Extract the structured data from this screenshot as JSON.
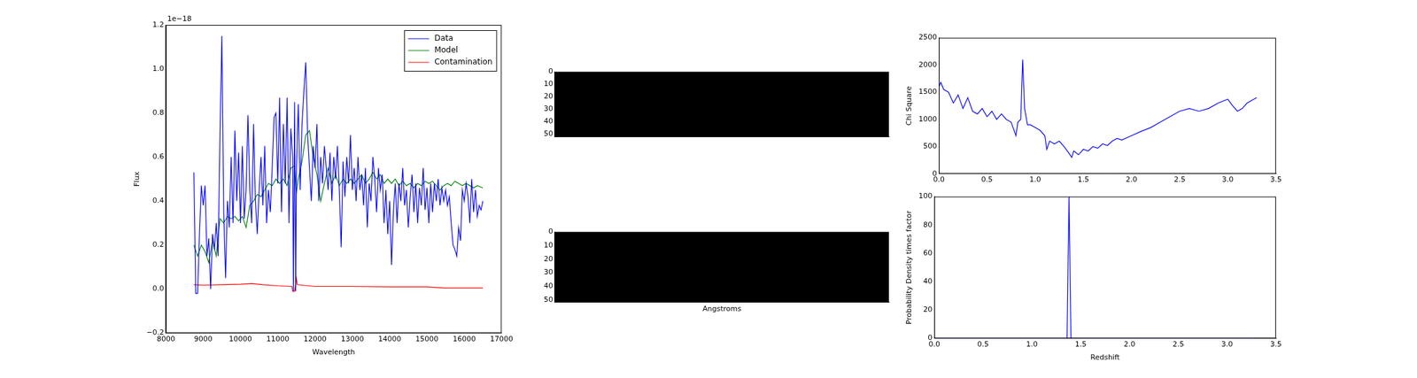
{
  "chart_data": [
    {
      "type": "line",
      "xlabel": "Wavelength",
      "ylabel": "Flux",
      "xlim": [
        8000,
        17000
      ],
      "xticks": [
        8000,
        9000,
        10000,
        11000,
        12000,
        13000,
        14000,
        15000,
        16000,
        17000
      ],
      "ylim": [
        -0.2,
        1.2
      ],
      "yticks": [
        {
          "value": -0.2,
          "label": "−0.2"
        },
        {
          "value": 0,
          "label": "0.0"
        },
        0.2,
        0.4,
        0.6,
        0.8,
        {
          "value": 1,
          "label": "1.0"
        },
        1.2
      ],
      "annotations": [
        "1e−18"
      ],
      "legend": "upper right",
      "grid": false,
      "series": [
        {
          "name": "Data",
          "color": "#0000ff",
          "x": [
            8750,
            8800,
            8850,
            8900,
            8950,
            9000,
            9050,
            9100,
            9150,
            9200,
            9250,
            9300,
            9350,
            9400,
            9450,
            9500,
            9550,
            9600,
            9650,
            9700,
            9750,
            9800,
            9850,
            9900,
            9950,
            10000,
            10050,
            10100,
            10150,
            10200,
            10250,
            10300,
            10350,
            10400,
            10450,
            10500,
            10550,
            10600,
            10650,
            10700,
            10750,
            10800,
            10850,
            10900,
            10950,
            11000,
            11050,
            11100,
            11150,
            11200,
            11250,
            11300,
            11350,
            11400,
            11420,
            11450,
            11480,
            11500,
            11550,
            11600,
            11650,
            11700,
            11750,
            11800,
            11850,
            11900,
            11950,
            12000,
            12050,
            12100,
            12150,
            12200,
            12250,
            12300,
            12350,
            12400,
            12450,
            12500,
            12550,
            12600,
            12650,
            12700,
            12750,
            12800,
            12850,
            12900,
            12950,
            13000,
            13050,
            13100,
            13150,
            13200,
            13250,
            13300,
            13350,
            13400,
            13450,
            13500,
            13550,
            13600,
            13650,
            13700,
            13750,
            13800,
            13850,
            13900,
            13950,
            14000,
            14050,
            14100,
            14150,
            14200,
            14250,
            14300,
            14350,
            14400,
            14450,
            14500,
            14550,
            14600,
            14650,
            14700,
            14750,
            14800,
            14850,
            14900,
            14950,
            15000,
            15050,
            15100,
            15150,
            15200,
            15250,
            15300,
            15350,
            15400,
            15450,
            15500,
            15550,
            15600,
            15650,
            15700,
            15750,
            15800,
            15850,
            15900,
            15950,
            16000,
            16050,
            16100,
            16150,
            16200,
            16250,
            16300,
            16350,
            16400,
            16450,
            16500
          ],
          "values": [
            0.53,
            -0.02,
            -0.02,
            0.25,
            0.47,
            0.38,
            0.47,
            0.15,
            0.23,
            0.0,
            0.25,
            0.18,
            0.3,
            0.15,
            0.7,
            1.15,
            0.35,
            0.05,
            0.4,
            0.28,
            0.6,
            0.3,
            0.72,
            0.4,
            0.62,
            0.3,
            0.65,
            0.32,
            0.45,
            0.79,
            0.45,
            0.3,
            0.75,
            0.4,
            0.25,
            0.45,
            0.6,
            0.38,
            0.65,
            0.3,
            0.45,
            0.35,
            0.55,
            0.78,
            0.8,
            0.48,
            0.87,
            0.35,
            0.75,
            0.48,
            0.87,
            0.3,
            0.73,
            0.6,
            -0.01,
            0.85,
            -0.01,
            0.55,
            0.84,
            0.45,
            0.75,
            0.9,
            1.03,
            0.7,
            0.55,
            0.4,
            0.65,
            0.55,
            0.75,
            0.4,
            0.6,
            0.48,
            0.65,
            0.55,
            0.45,
            0.62,
            0.4,
            0.6,
            0.5,
            0.65,
            0.45,
            0.19,
            0.58,
            0.42,
            0.6,
            0.48,
            0.7,
            0.45,
            0.55,
            0.4,
            0.6,
            0.45,
            0.52,
            0.38,
            0.55,
            0.28,
            0.48,
            0.4,
            0.6,
            0.5,
            0.35,
            0.55,
            0.45,
            0.52,
            0.3,
            0.45,
            0.25,
            0.4,
            0.11,
            0.35,
            0.48,
            0.3,
            0.48,
            0.4,
            0.55,
            0.38,
            0.45,
            0.28,
            0.42,
            0.52,
            0.35,
            0.48,
            0.3,
            0.46,
            0.38,
            0.55,
            0.36,
            0.46,
            0.3,
            0.48,
            0.35,
            0.48,
            0.4,
            0.5,
            0.38,
            0.46,
            0.4,
            0.45,
            0.38,
            0.42,
            0.3,
            0.2,
            0.18,
            0.15,
            0.28,
            0.22,
            0.45,
            0.4,
            0.48,
            0.42,
            0.3,
            0.5,
            0.35,
            0.45,
            0.33,
            0.38,
            0.36,
            0.4
          ]
        },
        {
          "name": "Model",
          "color": "#008000",
          "x": [
            8750,
            8850,
            8950,
            9050,
            9150,
            9250,
            9350,
            9450,
            9550,
            9650,
            9750,
            9850,
            9950,
            10050,
            10150,
            10250,
            10350,
            10450,
            10550,
            10650,
            10750,
            10850,
            10950,
            11050,
            11150,
            11250,
            11350,
            11450,
            11500,
            11550,
            11650,
            11750,
            11850,
            11950,
            12050,
            12150,
            12250,
            12350,
            12450,
            12550,
            12650,
            12750,
            12850,
            12950,
            13050,
            13150,
            13250,
            13350,
            13450,
            13550,
            13650,
            13750,
            13850,
            13950,
            14050,
            14150,
            14250,
            14350,
            14450,
            14550,
            14650,
            14750,
            14850,
            14950,
            15050,
            15150,
            15250,
            15350,
            15450,
            15550,
            15650,
            15750,
            15850,
            15950,
            16050,
            16150,
            16250,
            16350,
            16500
          ],
          "values": [
            0.2,
            0.15,
            0.2,
            0.17,
            0.12,
            0.22,
            0.15,
            0.32,
            0.3,
            0.33,
            0.32,
            0.33,
            0.31,
            0.33,
            0.28,
            0.38,
            0.4,
            0.43,
            0.42,
            0.45,
            0.48,
            0.47,
            0.5,
            0.48,
            0.5,
            0.47,
            0.55,
            0.56,
            0.44,
            0.5,
            0.58,
            0.7,
            0.72,
            0.6,
            0.52,
            0.4,
            0.48,
            0.55,
            0.48,
            0.52,
            0.47,
            0.5,
            0.48,
            0.5,
            0.48,
            0.5,
            0.52,
            0.48,
            0.5,
            0.53,
            0.5,
            0.52,
            0.48,
            0.5,
            0.48,
            0.5,
            0.47,
            0.49,
            0.47,
            0.48,
            0.46,
            0.48,
            0.47,
            0.49,
            0.48,
            0.49,
            0.47,
            0.45,
            0.47,
            0.48,
            0.47,
            0.49,
            0.48,
            0.47,
            0.48,
            0.47,
            0.46,
            0.47,
            0.46
          ]
        },
        {
          "name": "Contamination",
          "color": "#ff0000",
          "x": [
            8750,
            9000,
            9500,
            10000,
            10300,
            10600,
            11000,
            11380,
            11400,
            11450,
            11500,
            11520,
            12000,
            13000,
            14000,
            15000,
            15500,
            16500
          ],
          "values": [
            0.02,
            0.018,
            0.02,
            0.022,
            0.025,
            0.02,
            0.015,
            0.012,
            -0.01,
            -0.01,
            0.05,
            0.02,
            0.012,
            0.012,
            0.01,
            0.01,
            0.005,
            0.005
          ]
        }
      ]
    },
    {
      "type": "image",
      "color": "#000000",
      "ylim": [
        52,
        0
      ],
      "yticks": [
        0,
        10,
        20,
        30,
        40,
        50
      ],
      "tick_labels": "y"
    },
    {
      "type": "image",
      "color": "#000000",
      "ylim": [
        52,
        0
      ],
      "yticks": [
        0,
        10,
        20,
        30,
        40,
        50
      ],
      "tick_labels": "y",
      "xlabel": "Angstroms"
    },
    {
      "type": "line",
      "ylabel": "Chi Square",
      "grid": false,
      "xlim": [
        0,
        3.5
      ],
      "xticks": [
        {
          "value": 0,
          "label": "0.0"
        },
        0.5,
        {
          "value": 1,
          "label": "1.0"
        },
        1.5,
        {
          "value": 2,
          "label": "2.0"
        },
        2.5,
        {
          "value": 3,
          "label": "3.0"
        },
        3.5
      ],
      "ylim": [
        0,
        2500
      ],
      "yticks": [
        0,
        500,
        1000,
        1500,
        2000,
        2500
      ],
      "series": [
        {
          "color": "#0000ff",
          "x": [
            0.0,
            0.02,
            0.05,
            0.1,
            0.15,
            0.2,
            0.25,
            0.3,
            0.35,
            0.4,
            0.45,
            0.5,
            0.55,
            0.6,
            0.65,
            0.7,
            0.75,
            0.8,
            0.82,
            0.85,
            0.87,
            0.89,
            0.92,
            0.95,
            1.0,
            1.05,
            1.1,
            1.12,
            1.15,
            1.2,
            1.25,
            1.3,
            1.35,
            1.38,
            1.4,
            1.45,
            1.5,
            1.55,
            1.6,
            1.65,
            1.7,
            1.75,
            1.8,
            1.85,
            1.9,
            2.0,
            2.1,
            2.2,
            2.3,
            2.4,
            2.5,
            2.6,
            2.7,
            2.8,
            2.9,
            3.0,
            3.05,
            3.1,
            3.15,
            3.2,
            3.3
          ],
          "values": [
            1600,
            1680,
            1550,
            1500,
            1300,
            1450,
            1200,
            1400,
            1150,
            1100,
            1200,
            1050,
            1150,
            1000,
            1100,
            1000,
            950,
            700,
            950,
            1000,
            2100,
            1200,
            900,
            900,
            850,
            800,
            700,
            450,
            600,
            550,
            600,
            500,
            380,
            300,
            420,
            350,
            450,
            420,
            500,
            470,
            550,
            520,
            600,
            650,
            620,
            700,
            780,
            850,
            950,
            1050,
            1150,
            1200,
            1150,
            1200,
            1300,
            1370,
            1250,
            1150,
            1200,
            1300,
            1400
          ]
        }
      ]
    },
    {
      "type": "line",
      "xlabel": "Redshift",
      "ylabel": "Probability Density times factor",
      "grid": false,
      "xlim": [
        0,
        3.5
      ],
      "xticks": [
        {
          "value": 0,
          "label": "0.0"
        },
        0.5,
        {
          "value": 1,
          "label": "1.0"
        },
        1.5,
        {
          "value": 2,
          "label": "2.0"
        },
        2.5,
        {
          "value": 3,
          "label": "3.0"
        },
        3.5
      ],
      "ylim": [
        0,
        100
      ],
      "yticks": [
        0,
        20,
        40,
        60,
        80,
        100
      ],
      "series": [
        {
          "color": "#0000ff",
          "x": [
            0,
            1.36,
            1.38,
            1.4,
            3.3
          ],
          "values": [
            0,
            0,
            100,
            0,
            0
          ]
        }
      ]
    }
  ]
}
